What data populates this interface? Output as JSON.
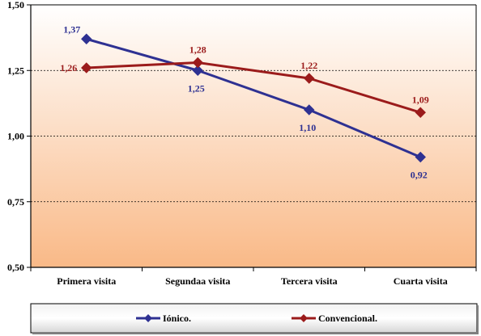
{
  "chart_data": {
    "type": "line",
    "title": "",
    "xlabel": "",
    "ylabel": "",
    "categories": [
      "Primera visita",
      "Segundaa visita",
      "Tercera visita",
      "Cuarta visita"
    ],
    "ylim": [
      0.5,
      1.5
    ],
    "yticks": [
      0.5,
      0.75,
      1.0,
      1.25,
      1.5
    ],
    "ytick_labels": [
      "0,50",
      "0,75",
      "1,00",
      "1,25",
      "1,50"
    ],
    "grid": "horizontal dashed",
    "legend_position": "bottom",
    "series": [
      {
        "name": "Iónico.",
        "color": "#2E3192",
        "marker": "diamond",
        "values": [
          1.37,
          1.25,
          1.1,
          0.92
        ],
        "labels": [
          "1,37",
          "1,25",
          "1,10",
          "0,92"
        ]
      },
      {
        "name": "Convencional.",
        "color": "#9B1B1B",
        "marker": "diamond",
        "values": [
          1.26,
          1.28,
          1.22,
          1.09
        ],
        "labels": [
          "1,26",
          "1,28",
          "1,22",
          "1,09"
        ]
      }
    ]
  }
}
